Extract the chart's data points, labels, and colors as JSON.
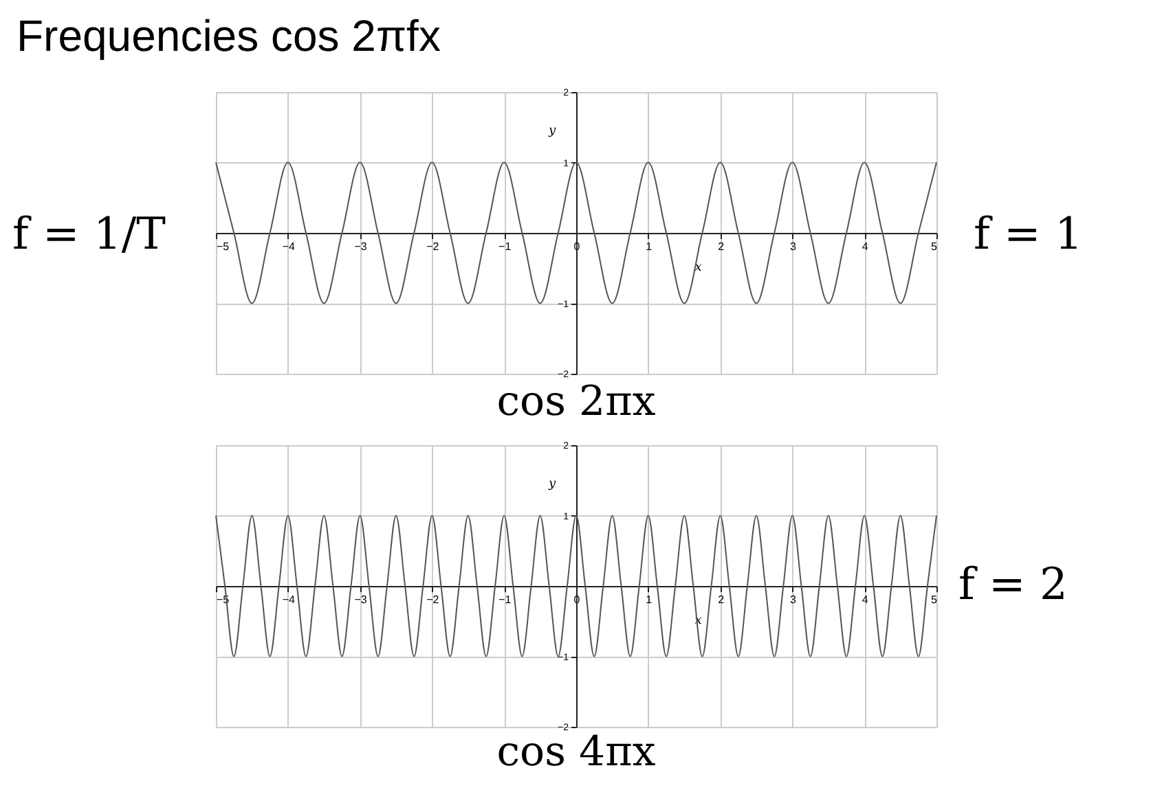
{
  "chart_data": [
    {
      "type": "line",
      "title": "Frequencies  cos 2πfx",
      "xlabel": "x",
      "ylabel": "y",
      "annotations": [
        "f = 1/T",
        "f = 1",
        "cos 2πx"
      ],
      "x": [
        -5,
        -4.75,
        -4.5,
        -4.25,
        -4,
        -3.75,
        -3.5,
        -3.25,
        -3,
        -2.75,
        -2.5,
        -2.25,
        -2,
        -1.75,
        -1.5,
        -1.25,
        -1,
        -0.75,
        -0.5,
        -0.25,
        0,
        0.25,
        0.5,
        0.75,
        1,
        1.25,
        1.5,
        1.75,
        2,
        2.25,
        2.5,
        2.75,
        3,
        3.25,
        3.5,
        3.75,
        4,
        4.25,
        4.5,
        4.75,
        5
      ],
      "series": [
        {
          "color": "#555555",
          "values": [
            1,
            0,
            -1,
            0,
            1,
            0,
            -1,
            0,
            1,
            0,
            -1,
            0,
            1,
            0,
            -1,
            0,
            1,
            0,
            -1,
            0,
            1,
            0,
            -1,
            0,
            1,
            0,
            -1,
            0,
            1,
            0,
            -1,
            0,
            1,
            0,
            -1,
            0,
            1,
            0,
            -1,
            0,
            1
          ]
        }
      ],
      "xlim": [
        -5,
        5
      ],
      "xticks": [
        -5,
        -4,
        -3,
        -2,
        -1,
        0,
        1,
        2,
        3,
        4,
        5
      ],
      "ylim": [
        -2,
        2
      ],
      "yticks": [
        -2,
        -1,
        1,
        2
      ],
      "grid": true,
      "marker": "none"
    },
    {
      "type": "line",
      "xlabel": "x",
      "ylabel": "y",
      "annotations": [
        "f = 2",
        "cos 4πx"
      ],
      "x": [
        -5,
        -4.875,
        -4.75,
        -4.625,
        -4.5,
        -4.375,
        -4.25,
        -4.125,
        -4,
        -3.875,
        -3.75,
        -3.625,
        -3.5,
        -3.375,
        -3.25,
        -3.125,
        -3,
        -2.875,
        -2.75,
        -2.625,
        -2.5,
        -2.375,
        -2.25,
        -2.125,
        -2,
        -1.875,
        -1.75,
        -1.625,
        -1.5,
        -1.375,
        -1.25,
        -1.125,
        -1,
        -0.875,
        -0.75,
        -0.625,
        -0.5,
        -0.375,
        -0.25,
        -0.125,
        0,
        0.125,
        0.25,
        0.375,
        0.5,
        0.625,
        0.75,
        0.875,
        1,
        1.125,
        1.25,
        1.375,
        1.5,
        1.625,
        1.75,
        1.875,
        2,
        2.125,
        2.25,
        2.375,
        2.5,
        2.625,
        2.75,
        2.875,
        3,
        3.125,
        3.25,
        3.375,
        3.5,
        3.625,
        3.75,
        3.875,
        4,
        4.125,
        4.25,
        4.375,
        4.5,
        4.625,
        4.75,
        4.875,
        5
      ],
      "series": [
        {
          "color": "#555555",
          "values": [
            1,
            0,
            -1,
            0,
            1,
            0,
            -1,
            0,
            1,
            0,
            -1,
            0,
            1,
            0,
            -1,
            0,
            1,
            0,
            -1,
            0,
            1,
            0,
            -1,
            0,
            1,
            0,
            -1,
            0,
            1,
            0,
            -1,
            0,
            1,
            0,
            -1,
            0,
            1,
            0,
            -1,
            0,
            1,
            0,
            -1,
            0,
            1,
            0,
            -1,
            0,
            1,
            0,
            -1,
            0,
            1,
            0,
            -1,
            0,
            1,
            0,
            -1,
            0,
            1,
            0,
            -1,
            0,
            1,
            0,
            -1,
            0,
            1,
            0,
            -1,
            0,
            1,
            0,
            -1,
            0,
            1,
            0,
            -1,
            0,
            1
          ]
        }
      ],
      "xlim": [
        -5,
        5
      ],
      "xticks": [
        -5,
        -4,
        -3,
        -2,
        -1,
        0,
        1,
        2,
        3,
        4,
        5
      ],
      "ylim": [
        -2,
        2
      ],
      "yticks": [
        -2,
        -1,
        1,
        2
      ],
      "grid": true,
      "marker": "none"
    }
  ]
}
